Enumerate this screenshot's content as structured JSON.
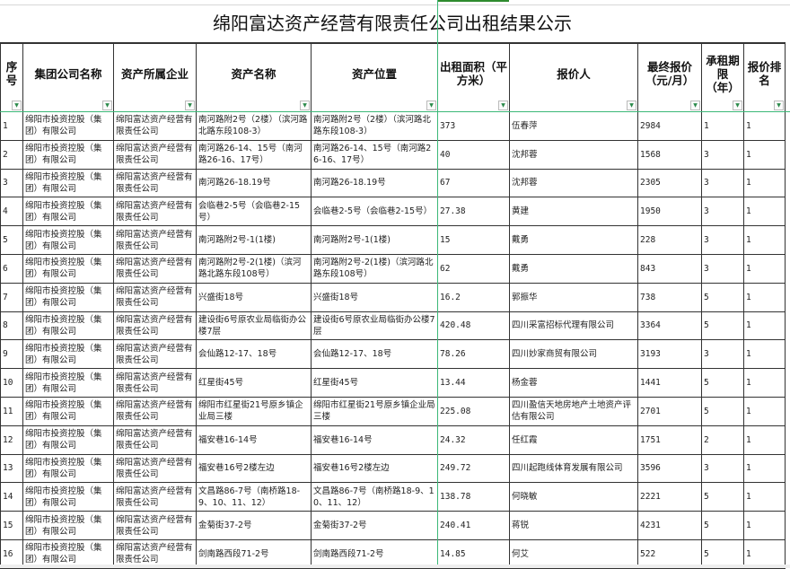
{
  "title": "绵阳富达资产经营有限责任公司出租结果公示",
  "headers": [
    "序号",
    "集团公司名称",
    "资产所属企业",
    "资产名称",
    "资产位置",
    "出租面积（平方米）",
    "报价人",
    "最终报价（元/月）",
    "承租期限（年）",
    "报价排名"
  ],
  "filter_icon": "dropdown-triangle",
  "accent_color": "#3cb878",
  "rows": [
    [
      "1",
      "绵阳市投资控股（集团）有限公司",
      "绵阳富达资产经营有限责任公司",
      "南河路附2号（2楼）（滨河路北路东段108-3）",
      "南河路附2号（2楼）（滨河路北路东段108-3）",
      "373",
      "伍春萍",
      "2984",
      "1",
      "1"
    ],
    [
      "2",
      "绵阳市投资控股（集团）有限公司",
      "绵阳富达资产经营有限责任公司",
      "南河路26-14、15号（南河路26-16、17号）",
      "南河路26-14、15号（南河路26-16、17号）",
      "40",
      "沈邦蓉",
      "1568",
      "3",
      "1"
    ],
    [
      "3",
      "绵阳市投资控股（集团）有限公司",
      "绵阳富达资产经营有限责任公司",
      "南河路26-18.19号",
      "南河路26-18.19号",
      "67",
      "沈邦蓉",
      "2305",
      "3",
      "1"
    ],
    [
      "4",
      "绵阳市投资控股（集团）有限公司",
      "绵阳富达资产经营有限责任公司",
      "会临巷2-5号（会临巷2-15号）",
      "会临巷2-5号（会临巷2-15号）",
      "27.38",
      "黄建",
      "1950",
      "3",
      "1"
    ],
    [
      "5",
      "绵阳市投资控股（集团）有限公司",
      "绵阳富达资产经营有限责任公司",
      "南河路附2号-1(1楼)",
      "南河路附2号-1(1楼)",
      "15",
      "戴勇",
      "228",
      "3",
      "1"
    ],
    [
      "6",
      "绵阳市投资控股（集团）有限公司",
      "绵阳富达资产经营有限责任公司",
      "南河路附2号-2(1楼)（滨河路北路东段108号）",
      "南河路附2号-2(1楼)（滨河路北路东段108号）",
      "62",
      "戴勇",
      "843",
      "3",
      "1"
    ],
    [
      "7",
      "绵阳市投资控股（集团）有限公司",
      "绵阳富达资产经营有限责任公司",
      "兴盛街18号",
      "兴盛街18号",
      "16.2",
      "郭振华",
      "738",
      "5",
      "1"
    ],
    [
      "8",
      "绵阳市投资控股（集团）有限公司",
      "绵阳富达资产经营有限责任公司",
      "建设街6号原农业局临街办公楼7层",
      "建设街6号原农业局临街办公楼7层",
      "420.48",
      "四川采富招标代理有限公司",
      "3364",
      "5",
      "1"
    ],
    [
      "9",
      "绵阳市投资控股（集团）有限公司",
      "绵阳富达资产经营有限责任公司",
      "会仙路12-17、18号",
      "会仙路12-17、18号",
      "78.26",
      "四川妙家商贸有限公司",
      "3193",
      "3",
      "1"
    ],
    [
      "10",
      "绵阳市投资控股（集团）有限公司",
      "绵阳富达资产经营有限责任公司",
      "红星街45号",
      "红星街45号",
      "13.44",
      "杨金蓉",
      "1441",
      "5",
      "1"
    ],
    [
      "11",
      "绵阳市投资控股（集团）有限公司",
      "绵阳富达资产经营有限责任公司",
      "绵阳市红星街21号原乡镇企业局三楼",
      "绵阳市红星街21号原乡镇企业局三楼",
      "225.08",
      "四川盈信天地房地产土地资产评估有限公司",
      "2701",
      "5",
      "1"
    ],
    [
      "12",
      "绵阳市投资控股（集团）有限公司",
      "绵阳富达资产经营有限责任公司",
      "福安巷16-14号",
      "福安巷16-14号",
      "24.32",
      "任红霞",
      "1751",
      "2",
      "1"
    ],
    [
      "13",
      "绵阳市投资控股（集团）有限公司",
      "绵阳富达资产经营有限责任公司",
      "福安巷16号2楼左边",
      "福安巷16号2楼左边",
      "249.72",
      "四川起跑线体育发展有限公司",
      "3596",
      "3",
      "1"
    ],
    [
      "14",
      "绵阳市投资控股（集团）有限公司",
      "绵阳富达资产经营有限责任公司",
      "文昌路86-7号（南桥路18-9、10、11、12）",
      "文昌路86-7号（南桥路18-9、10、11、12）",
      "138.78",
      "何晓敏",
      "2221",
      "5",
      "1"
    ],
    [
      "15",
      "绵阳市投资控股（集团）有限公司",
      "绵阳富达资产经营有限责任公司",
      "金菊街37-2号",
      "金菊街37-2号",
      "240.41",
      "蒋锐",
      "4231",
      "5",
      "1"
    ],
    [
      "16",
      "绵阳市投资控股（集团）有限公司",
      "绵阳富达资产经营有限责任公司",
      "剑南路西段71-2号",
      "剑南路西段71-2号",
      "14.85",
      "何艾",
      "522",
      "5",
      "1"
    ]
  ]
}
